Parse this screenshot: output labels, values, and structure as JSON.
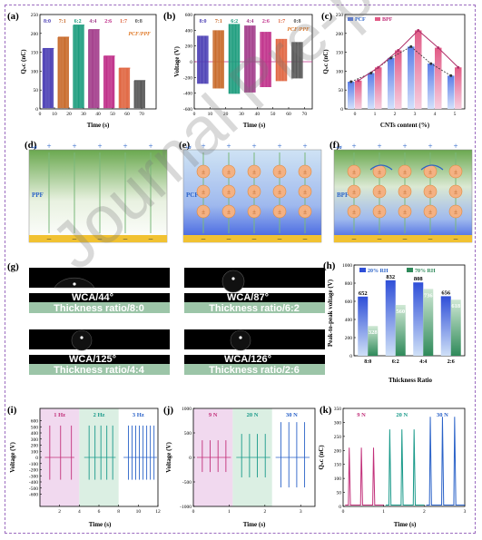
{
  "watermark": "Journal Pre-proof",
  "panels": {
    "a": {
      "label": "(a)",
      "ylabel": "Qₛᴄ (nC)",
      "xlabel": "Time (s)",
      "note": "PCF/PPF"
    },
    "b": {
      "label": "(b)",
      "ylabel": "Voltage (V)",
      "xlabel": "Time (s)",
      "note": "PCF/PPF"
    },
    "c": {
      "label": "(c)",
      "ylabel": "Qₛᴄ (nC)",
      "xlabel": "CNTs content (%)"
    },
    "d": {
      "label": "(d)",
      "material": "PPF",
      "sigma": "+σ"
    },
    "e": {
      "label": "(e)",
      "material": "PCF",
      "sigma": "+σ"
    },
    "f": {
      "label": "(f)",
      "material": "BPF",
      "sigma": "+σ"
    },
    "g": {
      "label": "(g)"
    },
    "h": {
      "label": "(h)",
      "ylabel": "Peak-to-peak voltage (V)",
      "xlabel": "Thickness Ratio"
    },
    "i": {
      "label": "(i)",
      "ylabel": "Voltage (V)",
      "xlabel": "Time (s)"
    },
    "j": {
      "label": "(j)",
      "ylabel": "Voltage (V)",
      "xlabel": "Time (s)"
    },
    "k": {
      "label": "(k)",
      "ylabel": "Qₛᴄ (nC)",
      "xlabel": "Time (s)"
    }
  },
  "droplets": [
    {
      "wca": "WCA/44°",
      "ratio": "Thickness ratio/8:0"
    },
    {
      "wca": "WCA/87°",
      "ratio": "Thickness ratio/6:2"
    },
    {
      "wca": "WCA/125°",
      "ratio": "Thickness ratio/4:4"
    },
    {
      "wca": "WCA/126°",
      "ratio": "Thickness ratio/2:6"
    }
  ],
  "colors": {
    "purple": "#5b3ea8",
    "orange": "#e07b2a",
    "teal": "#1a9a8a",
    "pink": "#c2307a",
    "blue": "#2a62c8"
  },
  "chart_data": [
    {
      "panel": "a",
      "type": "bar",
      "ratios": [
        "8:0",
        "7:1",
        "6:2",
        "4:4",
        "2:6",
        "1:7",
        "0:8"
      ],
      "values": [
        160,
        190,
        222,
        210,
        140,
        108,
        75
      ],
      "xlim": [
        0,
        80
      ],
      "ylim": [
        0,
        250
      ],
      "xticks": [
        0,
        10,
        20,
        30,
        40,
        50,
        60,
        70
      ],
      "yticks": [
        0,
        50,
        100,
        150,
        200,
        250
      ]
    },
    {
      "panel": "b",
      "type": "line",
      "ratios": [
        "8:0",
        "7:1",
        "6:2",
        "4:4",
        "2:6",
        "1:7",
        "0:8"
      ],
      "amplitudes": [
        330,
        400,
        480,
        460,
        380,
        290,
        250
      ],
      "xlim": [
        0,
        75
      ],
      "ylim": [
        -600,
        600
      ],
      "xticks": [
        0,
        10,
        20,
        30,
        40,
        50,
        60,
        70
      ],
      "yticks": [
        -600,
        -400,
        -200,
        0,
        200,
        400,
        600
      ]
    },
    {
      "panel": "c",
      "type": "bar",
      "categories": [
        "0",
        "1",
        "2",
        "3",
        "4",
        "5"
      ],
      "series": [
        {
          "name": "PCF",
          "values": [
            72,
            95,
            135,
            165,
            120,
            88
          ]
        },
        {
          "name": "BPF",
          "values": [
            75,
            110,
            155,
            208,
            162,
            110
          ]
        }
      ],
      "ylim": [
        0,
        250
      ],
      "yticks": [
        0,
        50,
        100,
        150,
        200,
        250
      ]
    },
    {
      "panel": "h",
      "type": "bar",
      "categories": [
        "8:0",
        "6:2",
        "4:4",
        "2:6"
      ],
      "series": [
        {
          "name": "20% RH",
          "values": [
            652,
            832,
            808,
            656
          ]
        },
        {
          "name": "70% RH",
          "values": [
            328,
            560,
            736,
            618
          ]
        }
      ],
      "ylim": [
        0,
        1000
      ],
      "yticks": [
        0,
        200,
        400,
        600,
        800,
        1000
      ]
    },
    {
      "panel": "i",
      "type": "line",
      "segments": [
        "1 Hz",
        "2 Hz",
        "3 Hz"
      ],
      "amplitude": 520,
      "xlim": [
        0,
        12
      ],
      "ylim": [
        -800,
        800
      ],
      "xticks": [
        2,
        4,
        6,
        8,
        10,
        12
      ],
      "yticks": [
        -600,
        -500,
        -400,
        -300,
        -200,
        -100,
        0,
        100,
        200,
        300,
        400,
        500,
        600
      ]
    },
    {
      "panel": "j",
      "type": "line",
      "segments": [
        "9 N",
        "20 N",
        "30 N"
      ],
      "amplitudes": [
        350,
        480,
        720
      ],
      "xlim": [
        0,
        3.4
      ],
      "ylim": [
        -1000,
        1000
      ],
      "xticks": [
        0,
        1,
        2,
        3
      ],
      "yticks": [
        -1000,
        -500,
        0,
        500,
        1000
      ]
    },
    {
      "panel": "k",
      "type": "line",
      "segments": [
        "9 N",
        "20 N",
        "30 N"
      ],
      "values": [
        210,
        275,
        320
      ],
      "xlim": [
        0,
        3
      ],
      "ylim": [
        0,
        350
      ],
      "xticks": [
        0,
        1,
        2,
        3
      ],
      "yticks": [
        0,
        50,
        100,
        150,
        200,
        250,
        300,
        350
      ]
    }
  ]
}
